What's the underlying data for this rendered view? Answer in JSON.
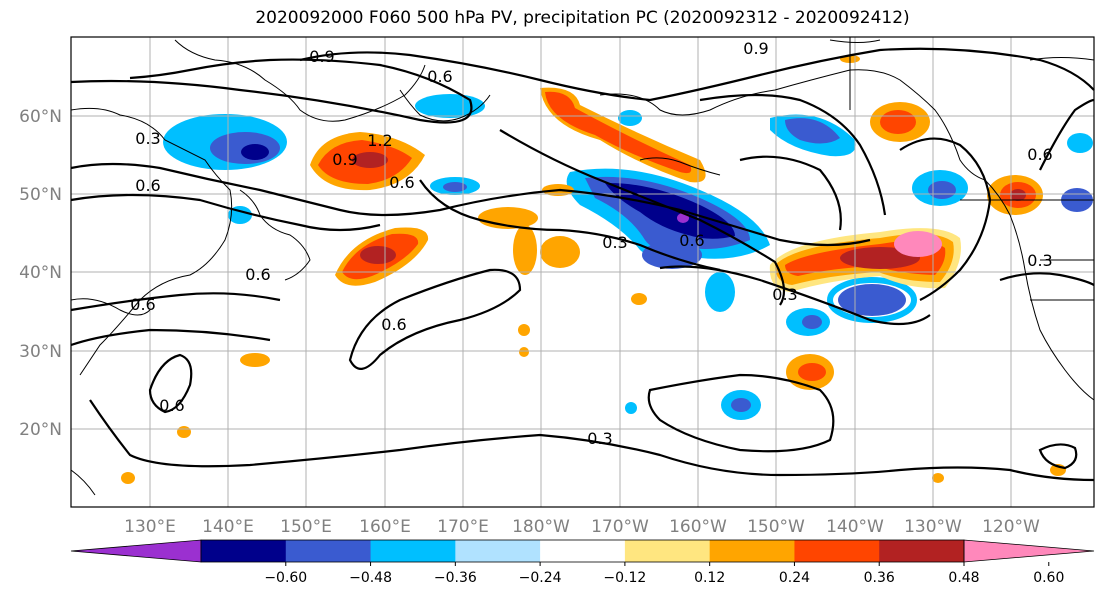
{
  "title": "2020092000 F060 500 hPa PV, precipitation PC (2020092312 - 2020092412)",
  "lat_labels": [
    "60°N",
    "50°N",
    "40°N",
    "30°N",
    "20°N"
  ],
  "lon_labels": [
    "130°E",
    "140°E",
    "150°E",
    "160°E",
    "170°E",
    "180°W",
    "170°W",
    "160°W",
    "150°W",
    "140°W",
    "130°W",
    "120°W"
  ],
  "colorbar": {
    "ticks": [
      "−0.60",
      "−0.48",
      "−0.36",
      "−0.24",
      "−0.12",
      "0.12",
      "0.24",
      "0.36",
      "0.48",
      "0.60"
    ],
    "colors": [
      "#9b30d0",
      "#00008b",
      "#3a5bd0",
      "#00bfff",
      "#b0e2ff",
      "#ffffff",
      "#ffe680",
      "#ffa500",
      "#ff4500",
      "#b22222",
      "#ff88bb"
    ]
  },
  "contour_labels": [
    "0.9",
    "0.6",
    "0.9",
    "0.3",
    "1.2",
    "0.6",
    "0.9",
    "0.6",
    "0.6",
    "0.6",
    "0.6",
    "0.6",
    "0.3",
    "0.6",
    "0.3",
    "0.6",
    "0.3",
    "0.3"
  ]
}
